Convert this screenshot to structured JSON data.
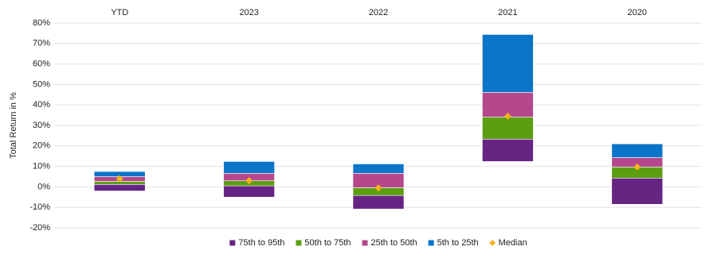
{
  "chart_data": {
    "type": "floating-stacked-bar",
    "y_label": "Total Return in %",
    "categories": [
      "YTD",
      "2023",
      "2022",
      "2021",
      "2020"
    ],
    "base": [
      -2,
      -5,
      -10.8,
      12.4,
      -8.5
    ],
    "series": [
      {
        "name": "75th to 95th",
        "color": "#662483",
        "values": [
          3.2,
          5.5,
          6.6,
          10.9,
          12.8
        ]
      },
      {
        "name": "50th to 75th",
        "color": "#5b9e12",
        "values": [
          1.5,
          2.5,
          3.8,
          10.8,
          5.4
        ]
      },
      {
        "name": "25th to 50th",
        "color": "#b5478c",
        "values": [
          2.3,
          3.6,
          7,
          12,
          4.6
        ]
      },
      {
        "name": "5th to 25th",
        "color": "#0a74c9",
        "values": [
          2.5,
          5.8,
          4.6,
          28.3,
          6.7
        ]
      }
    ],
    "median": {
      "name": "Median",
      "color": "#f6b21d",
      "values": [
        4,
        3,
        -0.5,
        34.5,
        9.7
      ]
    },
    "ylim": [
      -20,
      80
    ],
    "yticks": [
      {
        "value": -20,
        "label": "-20%"
      },
      {
        "value": -10,
        "label": "-10%"
      },
      {
        "value": 0,
        "label": "0%"
      },
      {
        "value": 10,
        "label": "10%"
      },
      {
        "value": 20,
        "label": "20%"
      },
      {
        "value": 30,
        "label": "30%"
      },
      {
        "value": 40,
        "label": "40%"
      },
      {
        "value": 50,
        "label": "50%"
      },
      {
        "value": 60,
        "label": "60%"
      },
      {
        "value": 70,
        "label": "70%"
      },
      {
        "value": 80,
        "label": "80%"
      }
    ],
    "grid": true
  }
}
